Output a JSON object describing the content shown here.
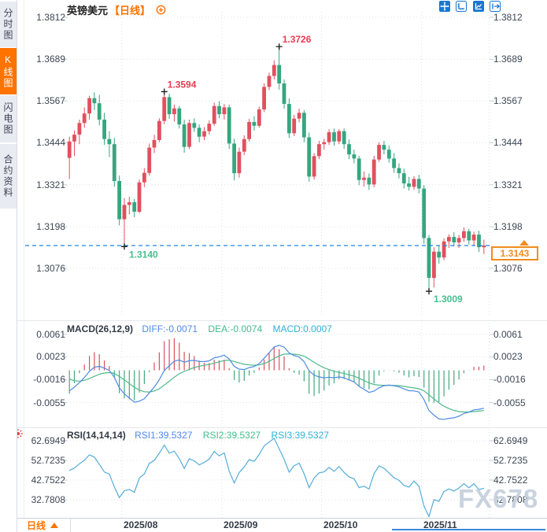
{
  "colors": {
    "accent_orange": "#FF7300",
    "tag_orange": "#F08C1E",
    "candle_up": "#E1505E",
    "candle_down": "#36A67F",
    "annotation_up": "#E63E52",
    "annotation_down": "#45C08F",
    "grid": "#DDE1E7",
    "axis_text": "#3C4654",
    "dashed_price_line": "#2285E0",
    "diff_line": "#4E8BE0",
    "dea_line": "#4CB98A",
    "hist_up": "#D9525E",
    "hist_down": "#46A87D",
    "rsi_line": "#55ADD8",
    "watermark": "#C9D3DF"
  },
  "sidebar": {
    "items": [
      "分时图",
      "K线图",
      "闪电图",
      "合约资料"
    ],
    "selected_index": 1
  },
  "header": {
    "symbol": "英镑美元",
    "period_tag": "【日线】"
  },
  "toolbar": {
    "icons": [
      "move",
      "axis-scale",
      "line-chart",
      "exit-chart"
    ]
  },
  "footer": {
    "period_selector": "日线"
  },
  "watermark": "FX678",
  "chart_data": {
    "type": "candlestick",
    "title": "英镑美元 日线 (GBP/USD Daily)",
    "price_axis": {
      "ticks": [
        1.3812,
        1.3689,
        1.3567,
        1.3444,
        1.3321,
        1.3198,
        1.3076
      ],
      "top": 1.3828,
      "bottom": 1.294
    },
    "months": [
      {
        "index": 11,
        "label": "2025/08"
      },
      {
        "index": 31,
        "label": "2025/09"
      },
      {
        "index": 51,
        "label": "2025/10"
      },
      {
        "index": 71,
        "label": "2025/11"
      }
    ],
    "current_price": 1.3143,
    "current_price_label": "1.3143",
    "annotations": [
      {
        "index": 11,
        "price": 1.314,
        "text": "1.3140",
        "placement": "below",
        "tone": "down"
      },
      {
        "index": 19,
        "price": 1.3594,
        "text": "1.3594",
        "placement": "above",
        "tone": "up"
      },
      {
        "index": 42,
        "price": 1.3726,
        "text": "1.3726",
        "placement": "above",
        "tone": "up"
      },
      {
        "index": 72,
        "price": 1.3009,
        "text": "1.3009",
        "placement": "below",
        "tone": "down"
      }
    ],
    "candles": [
      [
        1.34,
        1.3462,
        1.3338,
        1.3448
      ],
      [
        1.3448,
        1.348,
        1.3405,
        1.3468
      ],
      [
        1.3468,
        1.3512,
        1.344,
        1.3502
      ],
      [
        1.3502,
        1.3548,
        1.3488,
        1.353
      ],
      [
        1.353,
        1.3582,
        1.3512,
        1.3575
      ],
      [
        1.3575,
        1.3592,
        1.354,
        1.356
      ],
      [
        1.356,
        1.3585,
        1.3495,
        1.3512
      ],
      [
        1.3512,
        1.3532,
        1.3438,
        1.3455
      ],
      [
        1.3455,
        1.3478,
        1.3402,
        1.344
      ],
      [
        1.344,
        1.3458,
        1.3315,
        1.3332
      ],
      [
        1.3332,
        1.3348,
        1.3202,
        1.322
      ],
      [
        1.322,
        1.3282,
        1.314,
        1.3262
      ],
      [
        1.3262,
        1.3286,
        1.3234,
        1.327
      ],
      [
        1.327,
        1.328,
        1.3226,
        1.3242
      ],
      [
        1.3242,
        1.3336,
        1.3238,
        1.3328
      ],
      [
        1.3328,
        1.337,
        1.3314,
        1.3356
      ],
      [
        1.3356,
        1.3442,
        1.3348,
        1.343
      ],
      [
        1.343,
        1.3468,
        1.3414,
        1.3452
      ],
      [
        1.3452,
        1.3516,
        1.3446,
        1.3508
      ],
      [
        1.3508,
        1.3594,
        1.3498,
        1.3578
      ],
      [
        1.3578,
        1.3588,
        1.3514,
        1.3528
      ],
      [
        1.3528,
        1.3556,
        1.3506,
        1.3545
      ],
      [
        1.3545,
        1.3552,
        1.3486,
        1.3498
      ],
      [
        1.3498,
        1.3512,
        1.3415,
        1.3432
      ],
      [
        1.3432,
        1.3512,
        1.3426,
        1.3502
      ],
      [
        1.3502,
        1.3516,
        1.3476,
        1.3488
      ],
      [
        1.3488,
        1.3498,
        1.3446,
        1.3462
      ],
      [
        1.3462,
        1.349,
        1.3452,
        1.3478
      ],
      [
        1.3478,
        1.351,
        1.3468,
        1.35
      ],
      [
        1.35,
        1.3562,
        1.3494,
        1.3552
      ],
      [
        1.3552,
        1.3566,
        1.3516,
        1.3528
      ],
      [
        1.3528,
        1.3558,
        1.3512,
        1.3548
      ],
      [
        1.3548,
        1.3556,
        1.3426,
        1.3442
      ],
      [
        1.3442,
        1.3456,
        1.3334,
        1.3355
      ],
      [
        1.3355,
        1.343,
        1.3342,
        1.3418
      ],
      [
        1.3418,
        1.3466,
        1.3408,
        1.3455
      ],
      [
        1.3455,
        1.3514,
        1.3448,
        1.3505
      ],
      [
        1.3505,
        1.3522,
        1.348,
        1.3494
      ],
      [
        1.3494,
        1.355,
        1.3488,
        1.3542
      ],
      [
        1.3542,
        1.3618,
        1.3534,
        1.3608
      ],
      [
        1.3608,
        1.365,
        1.3598,
        1.364
      ],
      [
        1.364,
        1.3686,
        1.363,
        1.3672
      ],
      [
        1.3672,
        1.3726,
        1.36,
        1.3618
      ],
      [
        1.3618,
        1.363,
        1.3544,
        1.3558
      ],
      [
        1.3558,
        1.3574,
        1.3458,
        1.3472
      ],
      [
        1.3472,
        1.3526,
        1.3464,
        1.3515
      ],
      [
        1.3515,
        1.3544,
        1.3504,
        1.3532
      ],
      [
        1.3532,
        1.354,
        1.3446,
        1.346
      ],
      [
        1.346,
        1.3474,
        1.333,
        1.3345
      ],
      [
        1.3345,
        1.3414,
        1.3336,
        1.3405
      ],
      [
        1.3405,
        1.345,
        1.3396,
        1.344
      ],
      [
        1.344,
        1.3456,
        1.3424,
        1.3446
      ],
      [
        1.3446,
        1.3484,
        1.3438,
        1.3475
      ],
      [
        1.3475,
        1.3486,
        1.3436,
        1.3448
      ],
      [
        1.3448,
        1.3484,
        1.344,
        1.3478
      ],
      [
        1.3478,
        1.3486,
        1.3426,
        1.344
      ],
      [
        1.344,
        1.3454,
        1.3396,
        1.341
      ],
      [
        1.341,
        1.3424,
        1.3384,
        1.3398
      ],
      [
        1.3398,
        1.3406,
        1.332,
        1.3335
      ],
      [
        1.3335,
        1.336,
        1.3316,
        1.3342
      ],
      [
        1.3342,
        1.3354,
        1.3306,
        1.3322
      ],
      [
        1.3322,
        1.3406,
        1.3314,
        1.3395
      ],
      [
        1.3395,
        1.3446,
        1.3388,
        1.3438
      ],
      [
        1.3438,
        1.345,
        1.341,
        1.3424
      ],
      [
        1.3424,
        1.3436,
        1.3386,
        1.3398
      ],
      [
        1.3398,
        1.3414,
        1.3356,
        1.337
      ],
      [
        1.337,
        1.3384,
        1.334,
        1.3355
      ],
      [
        1.3355,
        1.3368,
        1.331,
        1.3325
      ],
      [
        1.3325,
        1.3344,
        1.3304,
        1.3315
      ],
      [
        1.3315,
        1.3346,
        1.3306,
        1.3338
      ],
      [
        1.3338,
        1.335,
        1.3296,
        1.331
      ],
      [
        1.331,
        1.332,
        1.3148,
        1.3165
      ],
      [
        1.3165,
        1.3174,
        1.3009,
        1.3048
      ],
      [
        1.3048,
        1.3138,
        1.302,
        1.3125
      ],
      [
        1.3125,
        1.3144,
        1.309,
        1.3108
      ],
      [
        1.3108,
        1.3164,
        1.31,
        1.3155
      ],
      [
        1.3155,
        1.3176,
        1.3136,
        1.3168
      ],
      [
        1.3168,
        1.3182,
        1.314,
        1.3152
      ],
      [
        1.3152,
        1.3174,
        1.3136,
        1.3165
      ],
      [
        1.3165,
        1.3196,
        1.3154,
        1.3185
      ],
      [
        1.3185,
        1.3192,
        1.3146,
        1.3158
      ],
      [
        1.3158,
        1.3184,
        1.3144,
        1.3175
      ],
      [
        1.3175,
        1.3186,
        1.3124,
        1.3138
      ],
      [
        1.3138,
        1.316,
        1.3118,
        1.3143
      ]
    ],
    "macd": {
      "title": "MACD(26,12,9)",
      "labels": {
        "diff": "DIFF:-0.0071",
        "dea": "DEA:-0.0074",
        "macd": "MACD:0.0007"
      },
      "params": {
        "fast": 12,
        "slow": 26,
        "signal": 9
      },
      "axis": {
        "ticks": [
          0.0061,
          0.0023,
          -0.0016,
          -0.0055
        ],
        "top": 0.0081,
        "bottom": -0.0093
      }
    },
    "rsi": {
      "title": "RSI(14,14,14)",
      "labels": {
        "rsi1": "RSI1:39.5327",
        "rsi2": "RSI2:39.5327",
        "rsi3": "RSI3:39.5327"
      },
      "period": 14,
      "axis": {
        "ticks": [
          62.6949,
          52.7235,
          42.7522,
          32.7808
        ],
        "top": 68.68,
        "bottom": 23.61
      }
    }
  }
}
